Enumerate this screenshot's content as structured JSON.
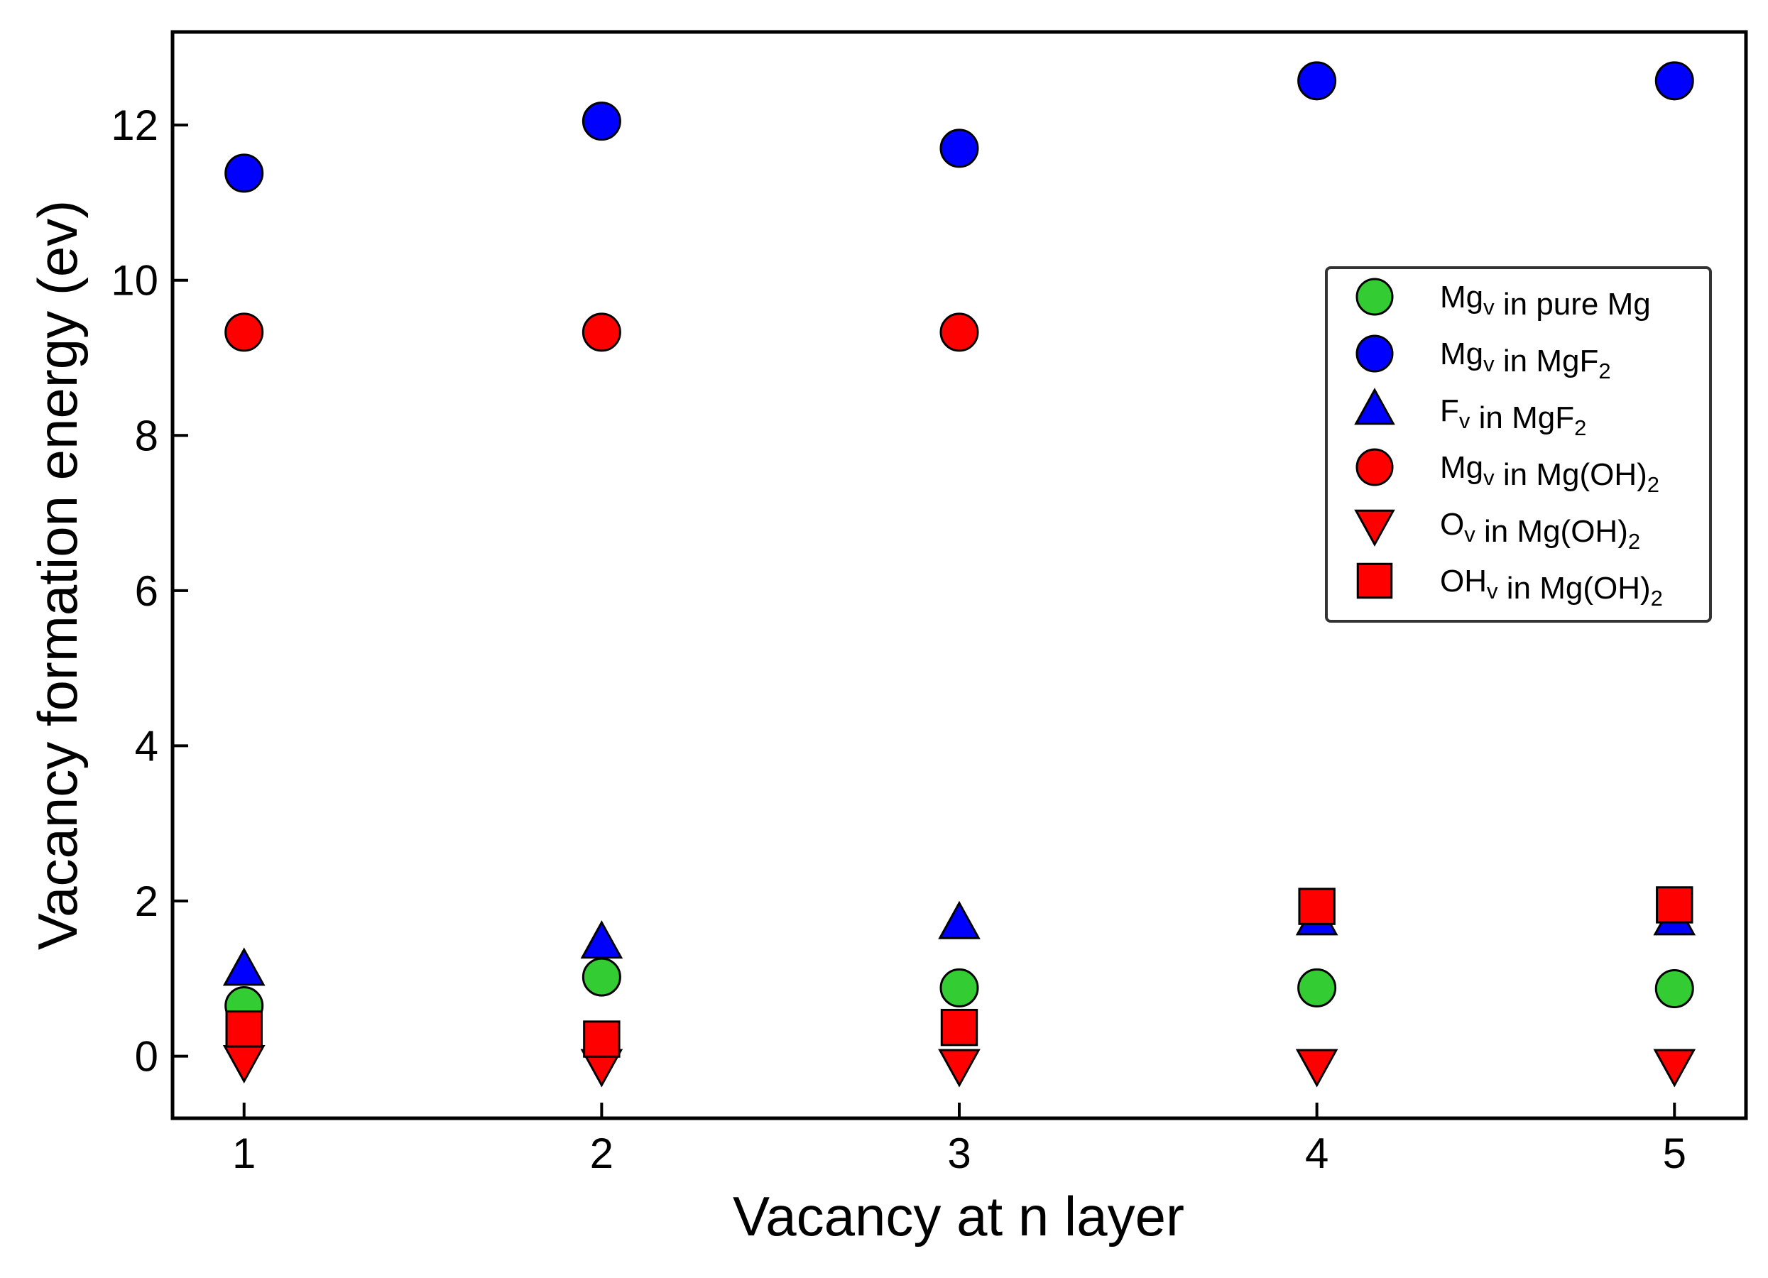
{
  "chart_data": {
    "type": "scatter",
    "title": "",
    "xlabel": "Vacancy at n layer",
    "ylabel": "Vacancy formation energy (ev)",
    "xlim": [
      0.8,
      5.2
    ],
    "ylim": [
      -0.8,
      13.2
    ],
    "x_ticks": [
      "1",
      "2",
      "3",
      "4",
      "5"
    ],
    "y_ticks": [
      "0",
      "2",
      "4",
      "6",
      "8",
      "10",
      "12"
    ],
    "grid": false,
    "legend_position": "center-right",
    "x": [
      1,
      2,
      3,
      4,
      5
    ],
    "series": [
      {
        "name": "Mgv in pure Mg",
        "legend": {
          "main": "Mg",
          "sub": "v",
          "rest": " in pure Mg",
          "sub2": ""
        },
        "marker": "circle",
        "color": "#33cc33",
        "values": [
          0.65,
          1.02,
          0.88,
          0.88,
          0.87
        ]
      },
      {
        "name": "Mgv in MgF2",
        "legend": {
          "main": "Mg",
          "sub": "v",
          "rest": " in MgF",
          "sub2": "2"
        },
        "marker": "circle",
        "color": "#0000ff",
        "values": [
          11.38,
          12.05,
          11.7,
          12.57,
          12.57
        ]
      },
      {
        "name": "Fv in MgF2",
        "legend": {
          "main": "F",
          "sub": "v",
          "rest": " in MgF",
          "sub2": "2"
        },
        "marker": "triangle-up",
        "color": "#0000ff",
        "values": [
          1.1,
          1.45,
          1.7,
          1.75,
          1.75
        ]
      },
      {
        "name": "Mgv in Mg(OH)2",
        "legend": {
          "main": "Mg",
          "sub": "v",
          "rest": " in Mg(OH)",
          "sub2": "2"
        },
        "marker": "circle",
        "color": "#ff0000",
        "values": [
          9.33,
          9.33,
          9.33,
          null,
          null
        ]
      },
      {
        "name": "Ov in Mg(OH)2",
        "legend": {
          "main": "O",
          "sub": "v",
          "rest": " in Mg(OH)",
          "sub2": "2"
        },
        "marker": "triangle-down",
        "color": "#ff0000",
        "values": [
          -0.05,
          -0.1,
          -0.1,
          -0.1,
          -0.1
        ]
      },
      {
        "name": "OHv in Mg(OH)2",
        "legend": {
          "main": "OH",
          "sub": "v",
          "rest": " in Mg(OH)",
          "sub2": "2"
        },
        "marker": "square",
        "color": "#ff0000",
        "values": [
          0.35,
          0.22,
          0.37,
          1.93,
          1.95
        ]
      }
    ]
  }
}
